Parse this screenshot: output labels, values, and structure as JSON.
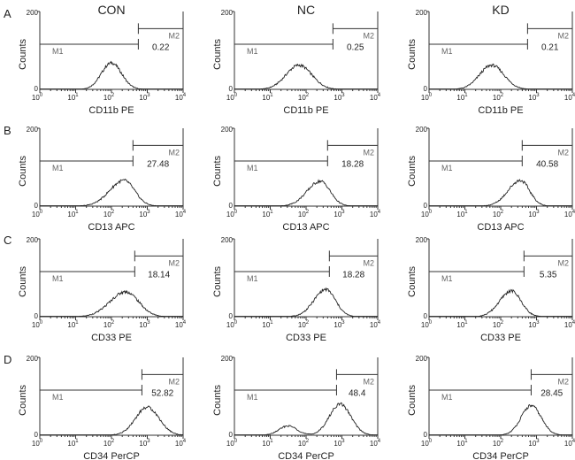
{
  "chart_data": {
    "type": "histogram-grid",
    "column_titles": [
      "CON",
      "NC",
      "KD"
    ],
    "row_letters": [
      "A",
      "B",
      "C",
      "D"
    ],
    "y_label": "Counts",
    "y_ticks": [
      "0",
      "200"
    ],
    "x_tick_base": "10",
    "x_tick_exponents": [
      "0",
      "1",
      "2",
      "3",
      "4"
    ],
    "gate_labels": [
      "M1",
      "M2"
    ],
    "panels": [
      {
        "row": 0,
        "col": 0,
        "marker": "CD11b PE",
        "m2_percent": "0.22",
        "gate_boundary_log": 2.75,
        "peak_log": 2.0,
        "peak_height": 0.34,
        "spread": 0.28,
        "skew": 0.0
      },
      {
        "row": 0,
        "col": 1,
        "marker": "CD11b PE",
        "m2_percent": "0.25",
        "gate_boundary_log": 2.75,
        "peak_log": 1.8,
        "peak_height": 0.31,
        "spread": 0.36,
        "skew": 0.0
      },
      {
        "row": 0,
        "col": 2,
        "marker": "CD11b PE",
        "m2_percent": "0.21",
        "gate_boundary_log": 2.75,
        "peak_log": 1.75,
        "peak_height": 0.31,
        "spread": 0.34,
        "skew": 0.0
      },
      {
        "row": 1,
        "col": 0,
        "marker": "CD13 APC",
        "m2_percent": "27.48",
        "gate_boundary_log": 2.6,
        "peak_log": 2.35,
        "peak_height": 0.33,
        "spread": 0.35,
        "skew": 0.15
      },
      {
        "row": 1,
        "col": 1,
        "marker": "CD13 APC",
        "m2_percent": "18.28",
        "gate_boundary_log": 2.6,
        "peak_log": 2.4,
        "peak_height": 0.32,
        "spread": 0.32,
        "skew": 0.15
      },
      {
        "row": 1,
        "col": 2,
        "marker": "CD13 APC",
        "m2_percent": "40.58",
        "gate_boundary_log": 2.6,
        "peak_log": 2.55,
        "peak_height": 0.33,
        "spread": 0.3,
        "skew": 0.15
      },
      {
        "row": 2,
        "col": 0,
        "marker": "CD33 PE",
        "m2_percent": "18.14",
        "gate_boundary_log": 2.65,
        "peak_log": 2.4,
        "peak_height": 0.32,
        "spread": 0.4,
        "skew": 0.1
      },
      {
        "row": 2,
        "col": 1,
        "marker": "CD33 PE",
        "m2_percent": "18.28",
        "gate_boundary_log": 2.65,
        "peak_log": 2.55,
        "peak_height": 0.35,
        "spread": 0.3,
        "skew": 0.1
      },
      {
        "row": 2,
        "col": 2,
        "marker": "CD33 PE",
        "m2_percent": "5.35",
        "gate_boundary_log": 2.65,
        "peak_log": 2.3,
        "peak_height": 0.33,
        "spread": 0.3,
        "skew": 0.1
      },
      {
        "row": 3,
        "col": 0,
        "marker": "CD34 PerCP",
        "m2_percent": "52.82",
        "gate_boundary_log": 2.85,
        "peak_log": 3.0,
        "peak_height": 0.36,
        "spread": 0.33,
        "skew": 0.0
      },
      {
        "row": 3,
        "col": 1,
        "marker": "CD34 PerCP",
        "m2_percent": "48.4",
        "gate_boundary_log": 2.85,
        "peak_log": 2.95,
        "peak_height": 0.4,
        "spread": 0.3,
        "skew": 0.0,
        "second_peak_log": 1.5,
        "second_peak_height": 0.12
      },
      {
        "row": 3,
        "col": 2,
        "marker": "CD34 PerCP",
        "m2_percent": "28.45",
        "gate_boundary_log": 2.85,
        "peak_log": 2.85,
        "peak_height": 0.38,
        "spread": 0.28,
        "skew": 0.0
      }
    ]
  }
}
